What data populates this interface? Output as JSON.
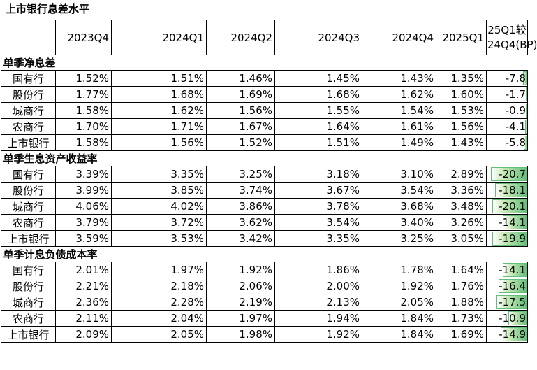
{
  "title": "上市银行息差水平",
  "columns": [
    "2023Q4",
    "2024Q1",
    "2024Q2",
    "2024Q3",
    "2024Q4",
    "2025Q1"
  ],
  "change_header": [
    "25Q1较",
    "24Q4(BP)"
  ],
  "sections": [
    {
      "name": "单季净息差",
      "rows": [
        {
          "bank": "国有行",
          "values": [
            "1.52%",
            "1.51%",
            "1.46%",
            "1.45%",
            "1.43%",
            "1.35%"
          ],
          "change": "-7.8",
          "bar": 0.108
        },
        {
          "bank": "股份行",
          "values": [
            "1.77%",
            "1.68%",
            "1.69%",
            "1.68%",
            "1.62%",
            "1.60%"
          ],
          "change": "-1.7",
          "bar": 0.024
        },
        {
          "bank": "城商行",
          "values": [
            "1.58%",
            "1.62%",
            "1.56%",
            "1.55%",
            "1.54%",
            "1.53%"
          ],
          "change": "-0.9",
          "bar": 0.013
        },
        {
          "bank": "农商行",
          "values": [
            "1.70%",
            "1.71%",
            "1.67%",
            "1.64%",
            "1.61%",
            "1.56%"
          ],
          "change": "-4.1",
          "bar": 0.057
        },
        {
          "bank": "上市银行",
          "values": [
            "1.58%",
            "1.56%",
            "1.52%",
            "1.51%",
            "1.49%",
            "1.43%"
          ],
          "change": "-5.8",
          "bar": 0.081
        }
      ]
    },
    {
      "name": "单季生息资产收益率",
      "rows": [
        {
          "bank": "国有行",
          "values": [
            "3.39%",
            "3.35%",
            "3.25%",
            "3.18%",
            "3.10%",
            "2.89%"
          ],
          "change": "-20.7",
          "bar": 0.9
        },
        {
          "bank": "股份行",
          "values": [
            "3.99%",
            "3.85%",
            "3.74%",
            "3.67%",
            "3.54%",
            "3.36%"
          ],
          "change": "-18.1",
          "bar": 0.79
        },
        {
          "bank": "城商行",
          "values": [
            "4.06%",
            "4.02%",
            "3.86%",
            "3.78%",
            "3.68%",
            "3.48%"
          ],
          "change": "-20.1",
          "bar": 0.87
        },
        {
          "bank": "农商行",
          "values": [
            "3.79%",
            "3.72%",
            "3.62%",
            "3.54%",
            "3.40%",
            "3.26%"
          ],
          "change": "-14.1",
          "bar": 0.61
        },
        {
          "bank": "上市银行",
          "values": [
            "3.59%",
            "3.53%",
            "3.42%",
            "3.35%",
            "3.25%",
            "3.05%"
          ],
          "change": "-19.9",
          "bar": 0.86
        }
      ]
    },
    {
      "name": "单季计息负债成本率",
      "rows": [
        {
          "bank": "国有行",
          "values": [
            "2.01%",
            "1.97%",
            "1.92%",
            "1.86%",
            "1.78%",
            "1.64%"
          ],
          "change": "-14.1",
          "bar": 0.61
        },
        {
          "bank": "股份行",
          "values": [
            "2.21%",
            "2.18%",
            "2.06%",
            "2.00%",
            "1.92%",
            "1.76%"
          ],
          "change": "-16.4",
          "bar": 0.71
        },
        {
          "bank": "城商行",
          "values": [
            "2.36%",
            "2.28%",
            "2.19%",
            "2.13%",
            "2.05%",
            "1.88%"
          ],
          "change": "-17.5",
          "bar": 0.76
        },
        {
          "bank": "农商行",
          "values": [
            "2.11%",
            "2.04%",
            "1.97%",
            "1.94%",
            "1.84%",
            "1.73%"
          ],
          "change": "-10.9",
          "bar": 0.47
        },
        {
          "bank": "上市银行",
          "values": [
            "2.09%",
            "2.05%",
            "1.98%",
            "1.92%",
            "1.84%",
            "1.69%"
          ],
          "change": "-14.9",
          "bar": 0.65
        }
      ]
    }
  ]
}
